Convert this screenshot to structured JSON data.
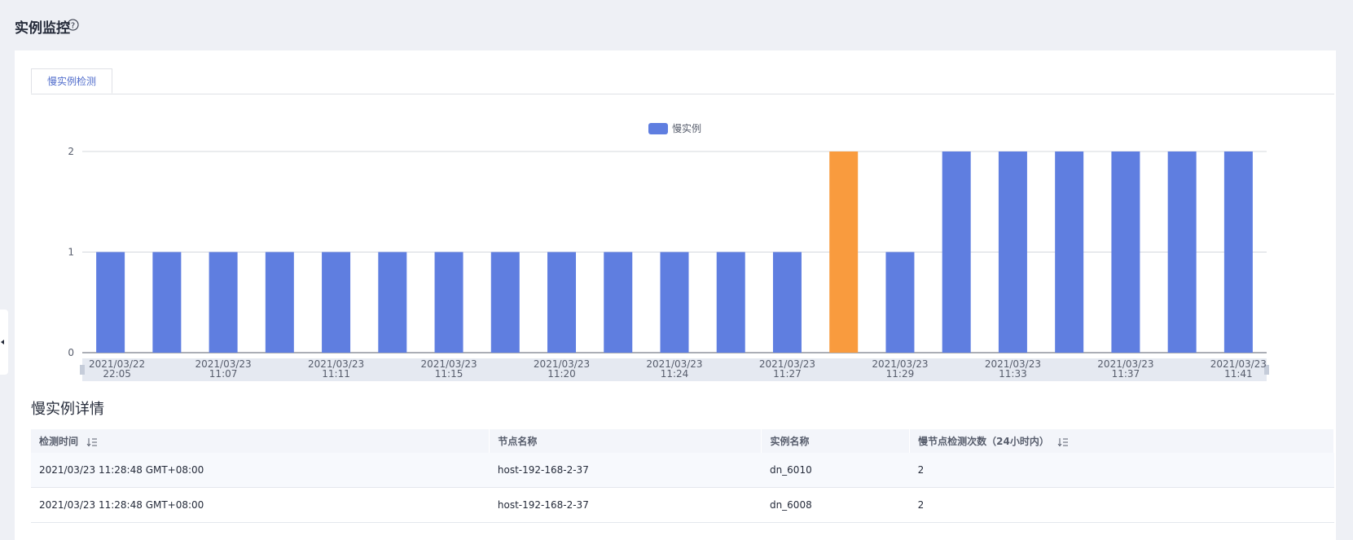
{
  "header": {
    "title": "实例监控"
  },
  "tabs": [
    "慢实例检测"
  ],
  "chart_data": {
    "type": "bar",
    "categories": [
      "2021/03/22 22:05",
      null,
      "2021/03/23 11:07",
      null,
      "2021/03/23 11:11",
      null,
      "2021/03/23 11:15",
      null,
      "2021/03/23 11:20",
      null,
      "2021/03/23 11:24",
      null,
      "2021/03/23 11:27",
      null,
      "2021/03/23 11:29",
      null,
      "2021/03/23 11:33",
      null,
      "2021/03/23 11:37",
      null,
      "2021/03/23 11:41"
    ],
    "series": [
      {
        "name": "慢实例",
        "color": "#5f7ee0",
        "values": [
          1,
          1,
          1,
          1,
          1,
          1,
          1,
          1,
          1,
          1,
          1,
          1,
          1,
          2,
          1,
          2,
          2,
          2,
          2,
          2,
          2
        ],
        "colors": [
          "#5f7ee0",
          "#5f7ee0",
          "#5f7ee0",
          "#5f7ee0",
          "#5f7ee0",
          "#5f7ee0",
          "#5f7ee0",
          "#5f7ee0",
          "#5f7ee0",
          "#5f7ee0",
          "#5f7ee0",
          "#5f7ee0",
          "#5f7ee0",
          "#f99b3e",
          "#5f7ee0",
          "#5f7ee0",
          "#5f7ee0",
          "#5f7ee0",
          "#5f7ee0",
          "#5f7ee0",
          "#5f7ee0"
        ]
      }
    ],
    "ylim": [
      0,
      2
    ],
    "yticks": [
      0,
      1,
      2
    ],
    "grid": true,
    "legend": "top"
  },
  "details": {
    "title": "慢实例详情",
    "table": {
      "columns": [
        "检测时间",
        "节点名称",
        "实例名称",
        "慢节点检测次数（24小时内）"
      ],
      "rows": [
        [
          "2021/03/23 11:28:48 GMT+08:00",
          "host-192-168-2-37",
          "dn_6010",
          "2"
        ],
        [
          "2021/03/23 11:28:48 GMT+08:00",
          "host-192-168-2-37",
          "dn_6008",
          "2"
        ]
      ]
    }
  }
}
